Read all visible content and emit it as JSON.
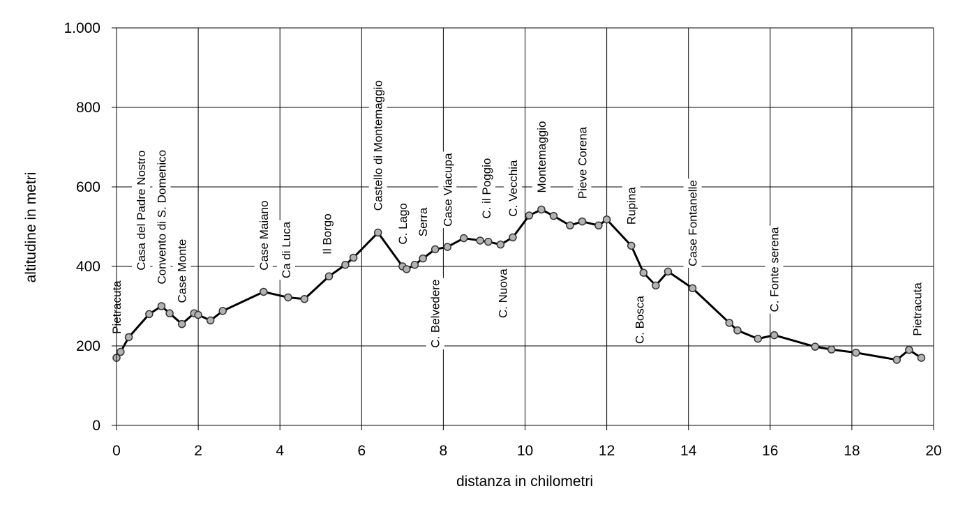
{
  "chart_data": {
    "type": "line",
    "title": "",
    "xlabel": "distanza in chilometri",
    "ylabel": "altitudine  in metri",
    "xlim": [
      0,
      20
    ],
    "ylim": [
      0,
      1000
    ],
    "grid": true,
    "legend": "none",
    "x_ticks": [
      0,
      2,
      4,
      6,
      8,
      10,
      12,
      14,
      16,
      18,
      20
    ],
    "y_ticks": [
      0,
      200,
      400,
      600,
      800,
      1000
    ],
    "x_tick_labels": [
      "0",
      "2",
      "4",
      "6",
      "8",
      "10",
      "12",
      "14",
      "16",
      "18",
      "20"
    ],
    "y_tick_labels": [
      "0",
      "200",
      "400",
      "600",
      "800",
      "1.000"
    ],
    "colors": {
      "line": "#000000",
      "marker_fill": "#b3b3b3",
      "marker_stroke": "#333333",
      "grid": "#000000"
    },
    "series": [
      {
        "x": [
          0.0,
          0.1,
          0.3,
          0.8,
          1.1,
          1.3,
          1.6,
          1.9,
          2.0,
          2.3,
          2.6,
          3.6,
          4.2,
          4.6,
          5.2,
          5.6,
          5.8,
          6.4,
          7.0,
          7.1,
          7.3,
          7.5,
          7.8,
          8.1,
          8.5,
          8.9,
          9.1,
          9.4,
          9.7,
          10.1,
          10.4,
          10.7,
          11.1,
          11.4,
          11.8,
          12.0,
          12.6,
          12.9,
          13.2,
          13.5,
          14.1,
          15.0,
          15.2,
          15.7,
          16.1,
          17.1,
          17.5,
          18.1,
          19.1,
          19.4,
          19.7
        ],
        "values": [
          170,
          185,
          222,
          280,
          300,
          282,
          255,
          282,
          278,
          264,
          288,
          336,
          322,
          318,
          375,
          404,
          422,
          485,
          400,
          393,
          404,
          420,
          443,
          449,
          471,
          465,
          462,
          455,
          473,
          528,
          543,
          527,
          503,
          513,
          503,
          518,
          452,
          384,
          352,
          387,
          345,
          258,
          239,
          218,
          227,
          198,
          191,
          183,
          165,
          190,
          170
        ]
      }
    ],
    "annotations": [
      {
        "text": "Pietracuta",
        "x": 0.0,
        "y": 230
      },
      {
        "text": "Casa del Padre Nostro",
        "x": 0.6,
        "y": 390
      },
      {
        "text": "Convento di S. Domenico",
        "x": 1.1,
        "y": 355
      },
      {
        "text": "Case Monte",
        "x": 1.6,
        "y": 308
      },
      {
        "text": "Case Maiano",
        "x": 3.6,
        "y": 390
      },
      {
        "text": "Ca di Luca",
        "x": 4.15,
        "y": 370
      },
      {
        "text": "Il Borgo",
        "x": 5.15,
        "y": 430
      },
      {
        "text": "Castello di Montemaggio",
        "x": 6.4,
        "y": 540
      },
      {
        "text": "C. Lago",
        "x": 7.0,
        "y": 455
      },
      {
        "text": "Serra",
        "x": 7.5,
        "y": 475
      },
      {
        "text": "C. Belvedere",
        "x": 7.8,
        "y": 195
      },
      {
        "text": "Case Viacupa",
        "x": 8.1,
        "y": 500
      },
      {
        "text": "C. il Poggio",
        "x": 9.05,
        "y": 520
      },
      {
        "text": "C. Nuova",
        "x": 9.45,
        "y": 270
      },
      {
        "text": "C. Vecchia",
        "x": 9.7,
        "y": 525
      },
      {
        "text": "Montemaggio",
        "x": 10.4,
        "y": 585
      },
      {
        "text": "Pieve Corena",
        "x": 11.4,
        "y": 570
      },
      {
        "text": "Rupina",
        "x": 12.6,
        "y": 505
      },
      {
        "text": "C. Bosca",
        "x": 12.8,
        "y": 205
      },
      {
        "text": "Case Fontanelle",
        "x": 14.1,
        "y": 400
      },
      {
        "text": "C. Fonte serena",
        "x": 16.1,
        "y": 285
      },
      {
        "text": "Pietracuta",
        "x": 19.6,
        "y": 225
      }
    ]
  }
}
